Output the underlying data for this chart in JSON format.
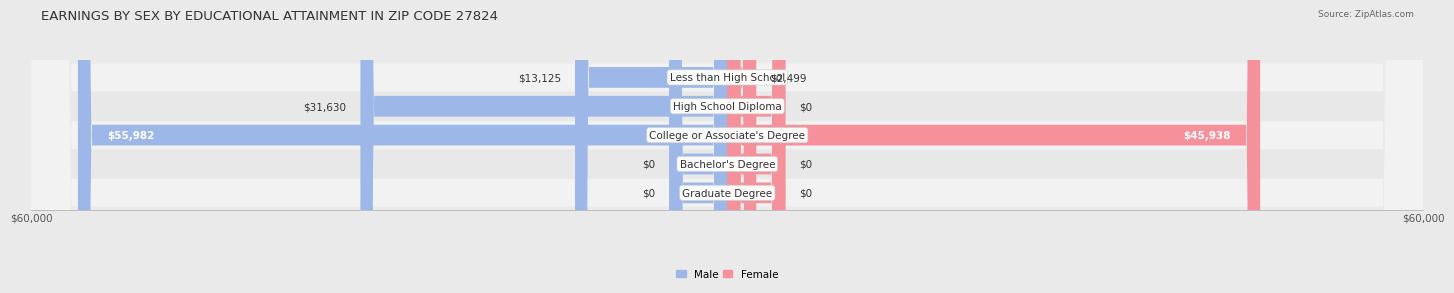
{
  "title": "EARNINGS BY SEX BY EDUCATIONAL ATTAINMENT IN ZIP CODE 27824",
  "source": "Source: ZipAtlas.com",
  "categories": [
    "Less than High School",
    "High School Diploma",
    "College or Associate's Degree",
    "Bachelor's Degree",
    "Graduate Degree"
  ],
  "male_values": [
    13125,
    31630,
    55982,
    0,
    0
  ],
  "female_values": [
    2499,
    0,
    45938,
    0,
    0
  ],
  "male_labels": [
    "$13,125",
    "$31,630",
    "$55,982",
    "$0",
    "$0"
  ],
  "female_labels": [
    "$2,499",
    "$0",
    "$45,938",
    "$0",
    "$0"
  ],
  "male_color": "#9db8e8",
  "female_color": "#f4919b",
  "axis_max": 60000,
  "axis_label": "$60,000",
  "background_color": "#eaeaea",
  "row_colors": [
    "#f2f2f2",
    "#e8e8e8",
    "#f2f2f2",
    "#e8e8e8",
    "#f2f2f2"
  ],
  "legend_male_color": "#9db8e8",
  "legend_female_color": "#f4919b",
  "title_fontsize": 9.5,
  "label_fontsize": 7.5,
  "category_fontsize": 7.5,
  "axis_fontsize": 7.5,
  "stub_value": 5000
}
